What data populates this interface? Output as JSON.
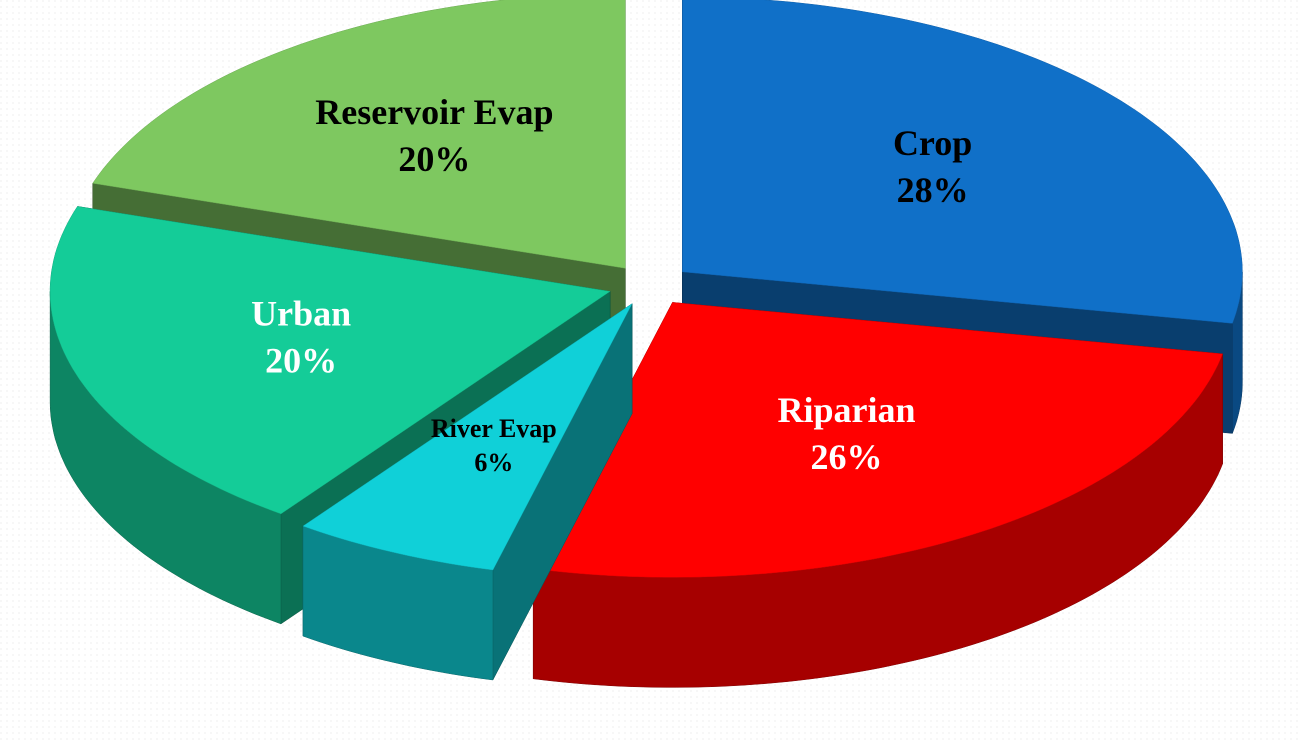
{
  "chart_data": {
    "type": "pie3d",
    "categories": [
      "Crop",
      "Riparian",
      "River Evap",
      "Urban",
      "Reservoir Evap"
    ],
    "values": [
      28,
      26,
      6,
      20,
      20
    ],
    "value_labels": [
      "28%",
      "26%",
      "6%",
      "20%",
      "20%"
    ],
    "colors": [
      "#1070c8",
      "#ff0000",
      "#10d0d8",
      "#14cc98",
      "#7ec860"
    ],
    "label_colors": [
      "#000000",
      "#ffffff",
      "#000000",
      "#ffffff",
      "#000000"
    ]
  }
}
